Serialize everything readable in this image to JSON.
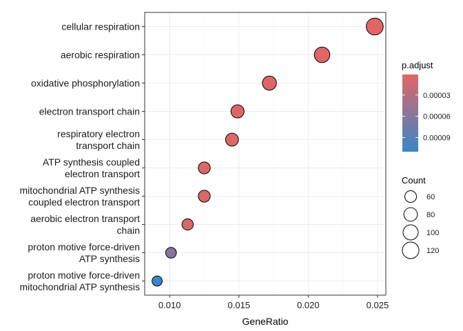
{
  "chart_data": {
    "type": "scatter",
    "xlabel": "GeneRatio",
    "ylabel": "",
    "title": "",
    "xlim": [
      0.0082,
      0.0256
    ],
    "x_ticks": [
      0.01,
      0.015,
      0.02,
      0.025
    ],
    "x_tick_labels": [
      "0.010",
      "0.015",
      "0.020",
      "0.025"
    ],
    "grid": true,
    "legend_placement": "right",
    "colors": {
      "low_padjust": "#e06666",
      "high_padjust": "#3a86c8"
    },
    "points": [
      {
        "term": [
          "cellular respiration"
        ],
        "gene_ratio": 0.0248,
        "count": 125,
        "p_adjust": 1e-06
      },
      {
        "term": [
          "aerobic respiration"
        ],
        "gene_ratio": 0.021,
        "count": 105,
        "p_adjust": 2e-06
      },
      {
        "term": [
          "oxidative phosphorylation"
        ],
        "gene_ratio": 0.0172,
        "count": 86,
        "p_adjust": 2e-06
      },
      {
        "term": [
          "electron transport chain"
        ],
        "gene_ratio": 0.0149,
        "count": 75,
        "p_adjust": 3e-06
      },
      {
        "term": [
          "respiratory electron",
          "transport chain"
        ],
        "gene_ratio": 0.0145,
        "count": 72,
        "p_adjust": 3e-06
      },
      {
        "term": [
          "ATP synthesis coupled",
          "electron transport"
        ],
        "gene_ratio": 0.0125,
        "count": 62,
        "p_adjust": 5e-06
      },
      {
        "term": [
          "mitochondrial ATP synthesis",
          "coupled electron transport"
        ],
        "gene_ratio": 0.0125,
        "count": 62,
        "p_adjust": 5e-06
      },
      {
        "term": [
          "aerobic electron transport",
          "chain"
        ],
        "gene_ratio": 0.0113,
        "count": 56,
        "p_adjust": 7e-06
      },
      {
        "term": [
          "proton motive force-driven",
          "ATP synthesis"
        ],
        "gene_ratio": 0.0101,
        "count": 50,
        "p_adjust": 6e-05
      },
      {
        "term": [
          "proton motive force-driven",
          "mitochondrial ATP synthesis"
        ],
        "gene_ratio": 0.0091,
        "count": 45,
        "p_adjust": 0.00011
      }
    ],
    "color_legend": {
      "title": "p.adjust",
      "range": [
        1e-06,
        0.00011
      ],
      "ticks": [
        3e-05,
        6e-05,
        9e-05
      ],
      "tick_labels": [
        "0.00003",
        "0.00006",
        "0.00009"
      ]
    },
    "size_legend": {
      "title": "Count",
      "values": [
        60,
        80,
        100,
        120
      ],
      "labels": [
        "60",
        "80",
        "100",
        "120"
      ]
    }
  }
}
